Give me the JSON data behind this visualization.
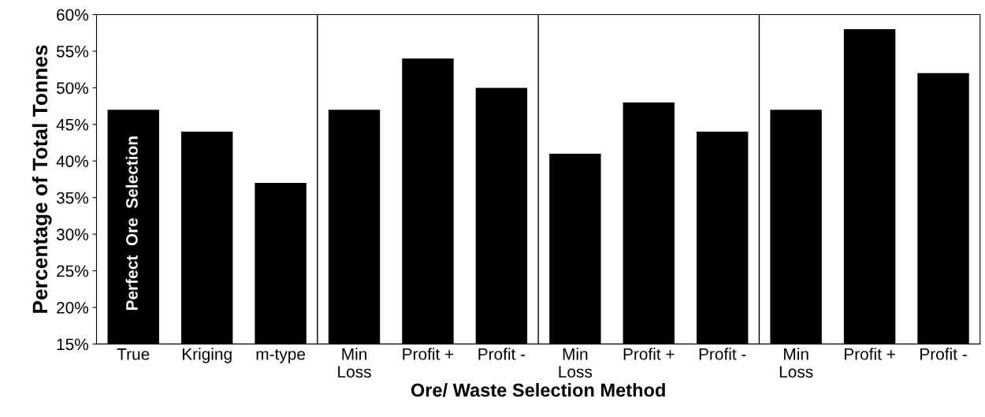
{
  "chart_data": {
    "type": "bar",
    "xlabel": "Ore/ Waste Selection Method",
    "ylabel": "Percentage of Total Tonnes",
    "categories": [
      "True",
      "Kriging",
      "m-type",
      "Min\nLoss",
      "Profit +",
      "Profit -",
      "Min\nLoss",
      "Profit +",
      "Profit -",
      "Min\nLoss",
      "Profit +",
      "Profit -"
    ],
    "values": [
      47,
      44,
      37,
      47,
      54,
      50,
      41,
      48,
      44,
      47,
      58,
      52
    ],
    "color": "#000000",
    "ylim": [
      15,
      60
    ],
    "yticks": [
      {
        "value": 15,
        "label": "15%"
      },
      {
        "value": 20,
        "label": "20%"
      },
      {
        "value": 25,
        "label": "25%"
      },
      {
        "value": 30,
        "label": "30%"
      },
      {
        "value": 35,
        "label": "35%"
      },
      {
        "value": 40,
        "label": "40%"
      },
      {
        "value": 45,
        "label": "45%"
      },
      {
        "value": 50,
        "label": "50%"
      },
      {
        "value": 55,
        "label": "55%"
      },
      {
        "value": 60,
        "label": "60%"
      }
    ],
    "annotations": [
      "Perfect  Ore  Selection"
    ],
    "grid": false,
    "legend": false
  }
}
